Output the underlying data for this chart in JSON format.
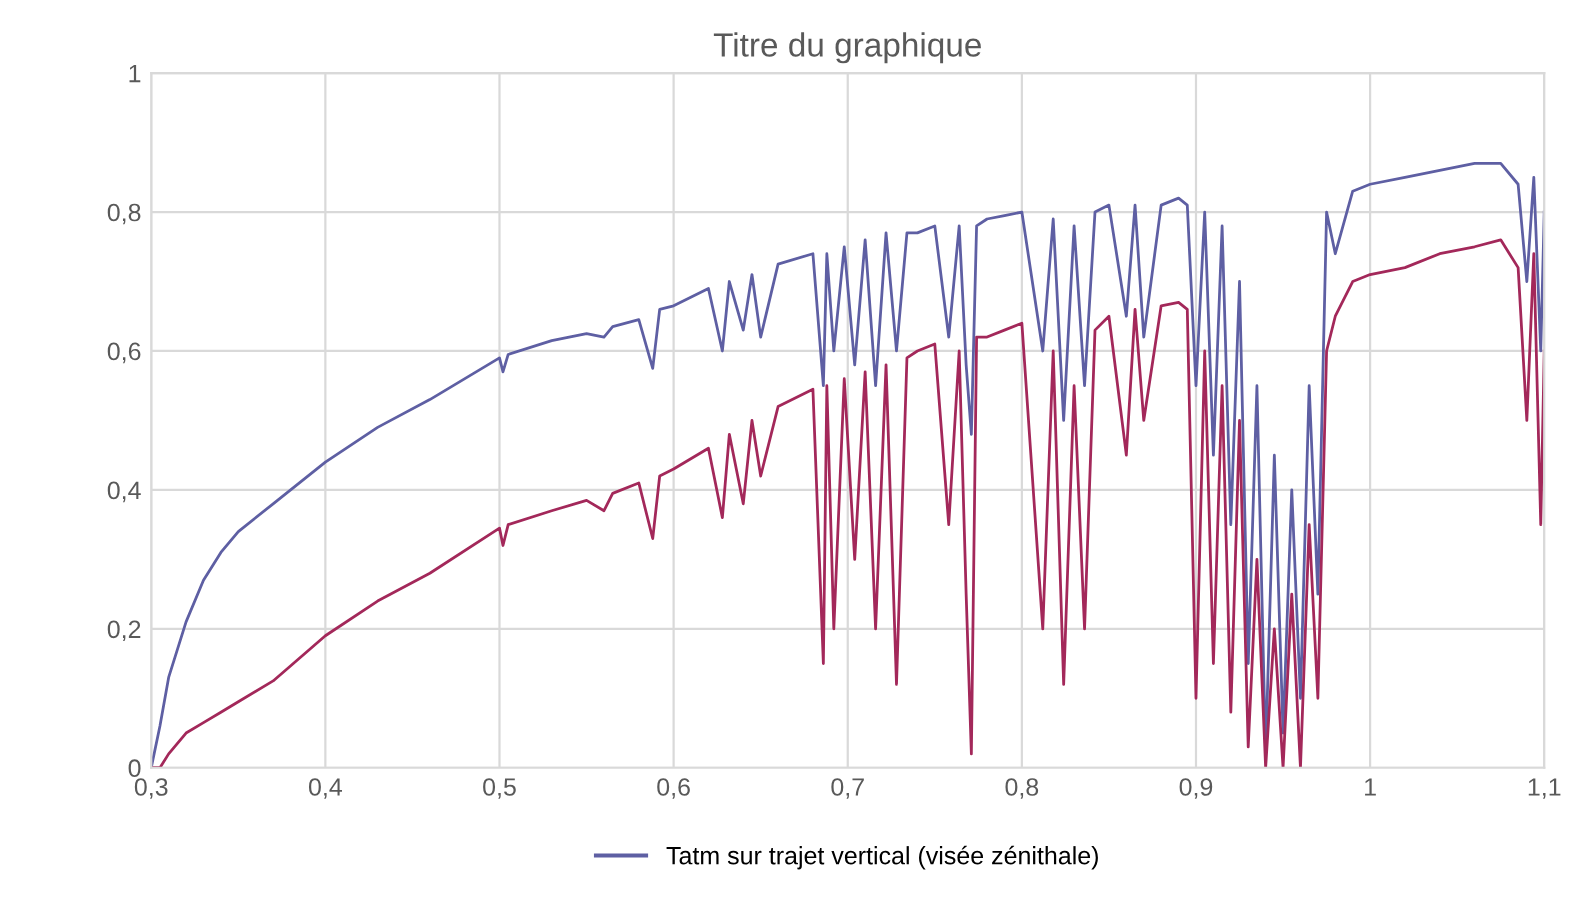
{
  "chart_data": {
    "type": "line",
    "title": "Titre du graphique",
    "x": [
      0.3,
      0.305,
      0.31,
      0.32,
      0.33,
      0.34,
      0.35,
      0.37,
      0.4,
      0.43,
      0.46,
      0.5,
      0.502,
      0.505,
      0.53,
      0.55,
      0.56,
      0.565,
      0.58,
      0.588,
      0.592,
      0.6,
      0.62,
      0.628,
      0.632,
      0.64,
      0.645,
      0.65,
      0.66,
      0.68,
      0.686,
      0.688,
      0.692,
      0.698,
      0.704,
      0.71,
      0.716,
      0.722,
      0.728,
      0.734,
      0.74,
      0.75,
      0.758,
      0.764,
      0.768,
      0.771,
      0.774,
      0.78,
      0.79,
      0.8,
      0.812,
      0.818,
      0.824,
      0.83,
      0.836,
      0.842,
      0.85,
      0.86,
      0.865,
      0.87,
      0.88,
      0.89,
      0.895,
      0.9,
      0.905,
      0.91,
      0.915,
      0.92,
      0.925,
      0.93,
      0.935,
      0.94,
      0.945,
      0.95,
      0.955,
      0.96,
      0.965,
      0.97,
      0.975,
      0.98,
      0.99,
      1.0,
      1.02,
      1.04,
      1.06,
      1.075,
      1.085,
      1.09,
      1.094,
      1.098,
      1.1
    ],
    "series": [
      {
        "name": "Tatm sur trajet vertical (visée zénithale)",
        "color": "#5e5fa3",
        "values": [
          0,
          0.06,
          0.13,
          0.21,
          0.27,
          0.31,
          0.34,
          0.38,
          0.44,
          0.49,
          0.53,
          0.59,
          0.57,
          0.595,
          0.615,
          0.625,
          0.62,
          0.635,
          0.645,
          0.575,
          0.66,
          0.665,
          0.69,
          0.6,
          0.7,
          0.63,
          0.71,
          0.62,
          0.725,
          0.74,
          0.55,
          0.74,
          0.6,
          0.75,
          0.58,
          0.76,
          0.55,
          0.77,
          0.6,
          0.77,
          0.77,
          0.78,
          0.62,
          0.78,
          0.58,
          0.48,
          0.78,
          0.79,
          0.795,
          0.8,
          0.6,
          0.79,
          0.5,
          0.78,
          0.55,
          0.8,
          0.81,
          0.65,
          0.81,
          0.62,
          0.81,
          0.82,
          0.81,
          0.55,
          0.8,
          0.45,
          0.78,
          0.35,
          0.7,
          0.15,
          0.55,
          0.02,
          0.45,
          0.05,
          0.4,
          0.1,
          0.55,
          0.25,
          0.8,
          0.74,
          0.83,
          0.84,
          0.85,
          0.86,
          0.87,
          0.87,
          0.84,
          0.7,
          0.85,
          0.6,
          0.8
        ]
      },
      {
        "color": "#a3285a",
        "values": [
          0,
          0,
          0.02,
          0.05,
          0.065,
          0.08,
          0.095,
          0.125,
          0.19,
          0.24,
          0.28,
          0.345,
          0.32,
          0.35,
          0.37,
          0.385,
          0.37,
          0.395,
          0.41,
          0.33,
          0.42,
          0.43,
          0.46,
          0.36,
          0.48,
          0.38,
          0.5,
          0.42,
          0.52,
          0.545,
          0.15,
          0.55,
          0.2,
          0.56,
          0.3,
          0.57,
          0.2,
          0.58,
          0.12,
          0.59,
          0.6,
          0.61,
          0.35,
          0.6,
          0.25,
          0.02,
          0.62,
          0.62,
          0.63,
          0.64,
          0.2,
          0.6,
          0.12,
          0.55,
          0.2,
          0.63,
          0.65,
          0.45,
          0.66,
          0.5,
          0.665,
          0.67,
          0.66,
          0.1,
          0.6,
          0.15,
          0.55,
          0.08,
          0.5,
          0.03,
          0.3,
          0,
          0.2,
          0,
          0.25,
          0,
          0.35,
          0.1,
          0.6,
          0.65,
          0.7,
          0.71,
          0.72,
          0.74,
          0.75,
          0.76,
          0.72,
          0.5,
          0.74,
          0.35,
          0.6
        ]
      }
    ],
    "xlim": [
      0.3,
      1.1
    ],
    "ylim": [
      0,
      1
    ],
    "xticks": [
      {
        "value": 0.3,
        "label": "0,3"
      },
      {
        "value": 0.4,
        "label": "0,4"
      },
      {
        "value": 0.5,
        "label": "0,5"
      },
      {
        "value": 0.6,
        "label": "0,6"
      },
      {
        "value": 0.7,
        "label": "0,7"
      },
      {
        "value": 0.8,
        "label": "0,8"
      },
      {
        "value": 0.9,
        "label": "0,9"
      },
      {
        "value": 1.0,
        "label": "1"
      },
      {
        "value": 1.1,
        "label": "1,1"
      }
    ],
    "yticks": [
      0,
      {
        "value": 0.2,
        "label": "0,2"
      },
      {
        "value": 0.4,
        "label": "0,4"
      },
      {
        "value": 0.6,
        "label": "0,6"
      },
      {
        "value": 0.8,
        "label": "0,8"
      },
      1
    ],
    "grid": true,
    "legend": "bottom",
    "marker": "none",
    "line_style": "solid"
  }
}
